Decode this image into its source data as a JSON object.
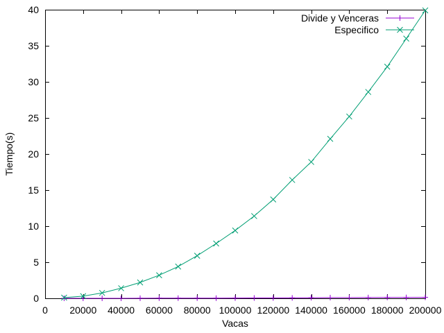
{
  "chart_data": {
    "type": "line",
    "title": "",
    "xlabel": "Vacas",
    "ylabel": "Tiempo(s)",
    "xlim": [
      0,
      200000
    ],
    "ylim": [
      0,
      40
    ],
    "x_ticks": [
      0,
      20000,
      40000,
      60000,
      80000,
      100000,
      120000,
      140000,
      160000,
      180000,
      200000
    ],
    "x_tick_labels": [
      "0",
      "20000",
      "40000",
      "60000",
      "80000",
      "100000",
      "120000",
      "140000",
      "160000",
      "180000",
      "200000"
    ],
    "y_ticks": [
      0,
      5,
      10,
      15,
      20,
      25,
      30,
      35,
      40
    ],
    "y_tick_labels": [
      "0",
      "5",
      "10",
      "15",
      "20",
      "25",
      "30",
      "35",
      "40"
    ],
    "grid": false,
    "legend_position": "top-right",
    "x": [
      10000,
      20000,
      30000,
      40000,
      50000,
      60000,
      70000,
      80000,
      90000,
      100000,
      110000,
      120000,
      130000,
      140000,
      150000,
      160000,
      170000,
      180000,
      190000,
      200000
    ],
    "series": [
      {
        "name": "Divide y Venceras",
        "color": "#9400d3",
        "marker": "plus",
        "values": [
          0.0,
          0.0,
          0.0,
          0.0,
          0.01,
          0.02,
          0.02,
          0.03,
          0.03,
          0.04,
          0.05,
          0.05,
          0.06,
          0.08,
          0.1,
          0.1,
          0.11,
          0.12,
          0.12,
          0.13
        ]
      },
      {
        "name": "Especifico",
        "color": "#009e73",
        "marker": "cross",
        "values": [
          0.1,
          0.3,
          0.75,
          1.4,
          2.2,
          3.2,
          4.4,
          5.9,
          7.6,
          9.4,
          11.4,
          13.7,
          16.4,
          18.9,
          22.1,
          25.2,
          28.6,
          32.1,
          36.0,
          39.9
        ]
      }
    ]
  }
}
